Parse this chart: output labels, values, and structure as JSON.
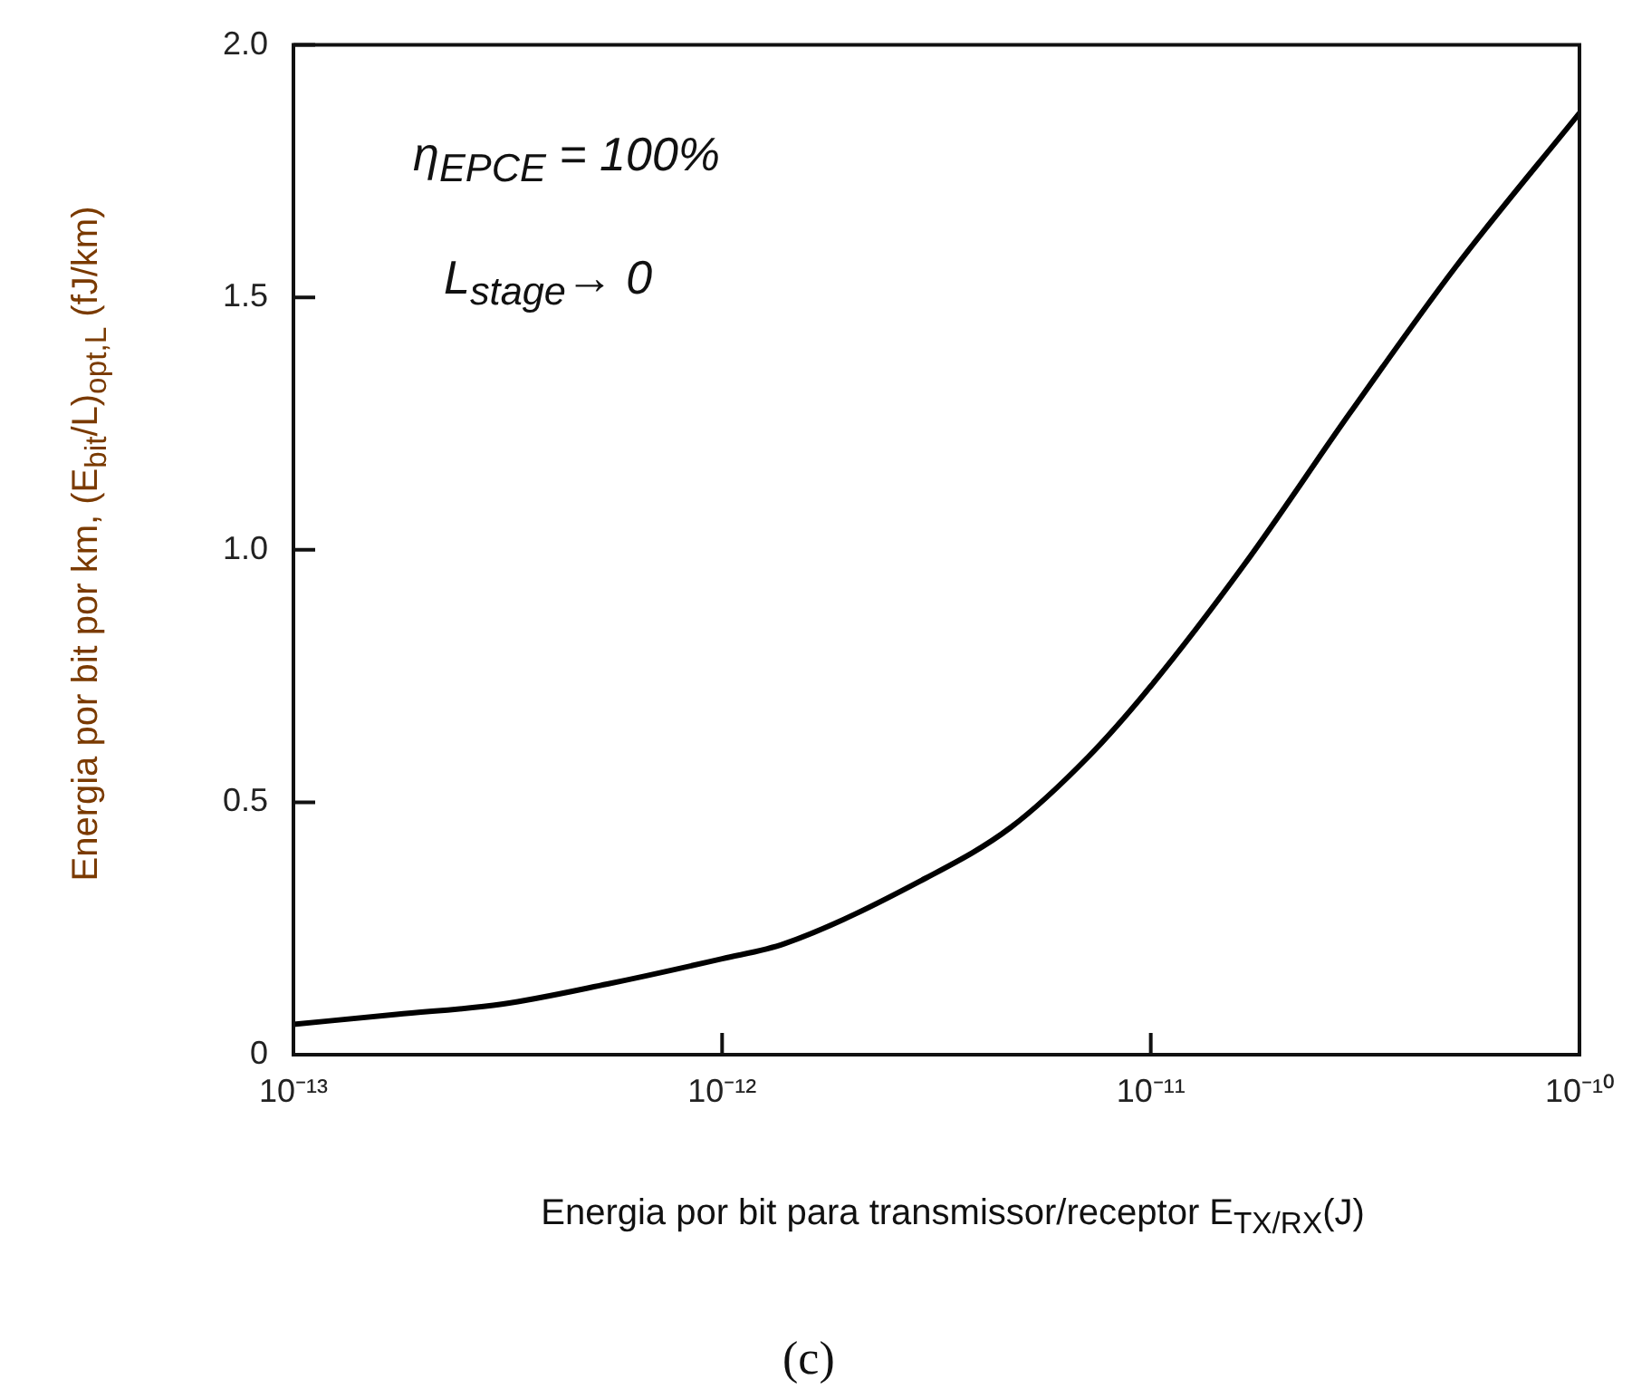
{
  "chart_data": {
    "type": "line",
    "xlabel": "Energia por bit para transmissor/receptor  E$_{TX/RX}$(J)",
    "ylabel": "Energia por bit por km,   (E$_{bit}$/L)$_{opt,L}$   (fJ/km)",
    "annotations": [
      "η$_{EPCE}$ = 100%",
      "L$_{stage}$→ 0",
      "(c)"
    ],
    "log": "x",
    "x": [
      1e-13,
      1.74e-13,
      3.06e-13,
      5.4e-13,
      1e-12,
      1.4e-12,
      2.99e-12,
      4.71e-12,
      7.15e-12,
      1e-11,
      1.65e-11,
      2.91e-11,
      5.14e-11,
      1e-10
    ],
    "series": [
      {
        "color": "#000000",
        "values": [
          0.06,
          0.08,
          0.1,
          0.14,
          0.19,
          0.22,
          0.35,
          0.45,
          0.59,
          0.73,
          0.97,
          1.27,
          1.56,
          1.865
        ]
      }
    ],
    "xlim": [
      1e-13,
      1e-10
    ],
    "xticks": [
      {
        "value": 1e-13,
        "label": "10⁻¹³"
      },
      {
        "value": 1e-12,
        "label": "10⁻¹²"
      },
      {
        "value": 1e-11,
        "label": "10⁻¹¹"
      },
      {
        "value": 1e-10,
        "label": "10⁻¹⁰"
      }
    ],
    "ylim": [
      0,
      2.0
    ],
    "yticks": [
      0,
      {
        "value": 0.5,
        "label": "0.5"
      },
      {
        "value": 1.0,
        "label": "1.0"
      },
      {
        "value": 1.5,
        "label": "1.5"
      },
      {
        "value": 2.0,
        "label": "2.0"
      }
    ],
    "marker": "none",
    "line_style": "solid",
    "legend": false
  }
}
